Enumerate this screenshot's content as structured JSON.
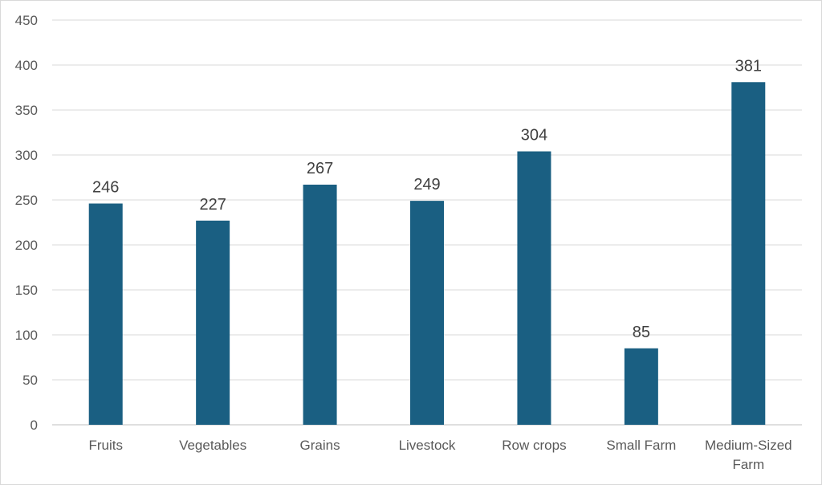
{
  "chart_data": {
    "type": "bar",
    "categories": [
      [
        "Fruits"
      ],
      [
        "Vegetables"
      ],
      [
        "Grains"
      ],
      [
        "Livestock"
      ],
      [
        "Row crops"
      ],
      [
        "Small Farm"
      ],
      [
        "Medium-Sized",
        "Farm"
      ]
    ],
    "values": [
      246,
      227,
      267,
      249,
      304,
      85,
      381
    ],
    "ylim": [
      0,
      450
    ],
    "yticks": [
      0,
      50,
      100,
      150,
      200,
      250,
      300,
      350,
      400,
      450
    ],
    "grid": true,
    "data_labels": true,
    "bar_color": "#1a5f82",
    "grid_color": "#d9d9d9"
  }
}
